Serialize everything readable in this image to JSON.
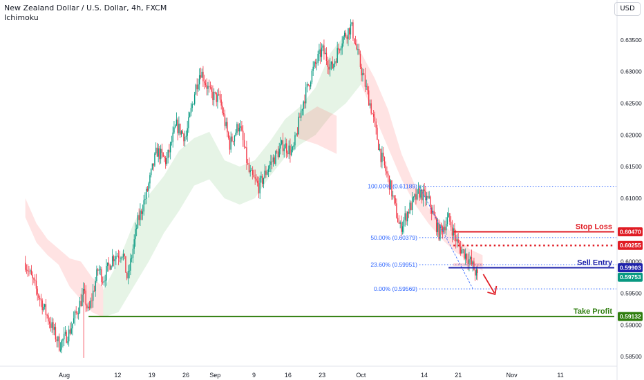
{
  "header": {
    "title": "New Zealand Dollar / U.S. Dollar, 4h, FXCM",
    "indicator": "Ichimoku",
    "currency_button": "USD"
  },
  "colors": {
    "up": "#089981",
    "down": "#f23645",
    "cloud_green": "#4caf50",
    "cloud_red": "#ff5252",
    "fib": "#2962ff",
    "stop": "#e01c24",
    "entry": "#1e22aa",
    "tp": "#2e7d0d"
  },
  "chart_data": {
    "type": "candlestick",
    "symbol": "New Zealand Dollar / U.S. Dollar",
    "timeframe": "4h",
    "y_axis": {
      "ticks": [
        "0.63500",
        "0.63000",
        "0.62500",
        "0.62000",
        "0.61500",
        "0.61000",
        "0.60500",
        "0.60000",
        "0.59500",
        "0.59000",
        "0.58500"
      ],
      "ylim": [
        0.5837,
        0.6388
      ]
    },
    "x_axis": {
      "ticks": [
        "Aug",
        "12",
        "19",
        "26",
        "Sep",
        "9",
        "16",
        "23",
        "Oct",
        "14",
        "21",
        "Nov",
        "11"
      ]
    },
    "price_path": [
      [
        "Jul 24",
        0.5998
      ],
      [
        "Jul 26",
        0.596
      ],
      [
        "Jul 29",
        0.5905
      ],
      [
        "Jul 31",
        0.5868
      ],
      [
        "Aug 2",
        0.5888
      ],
      [
        "Aug 5",
        0.595
      ],
      [
        "Aug 6",
        0.5918
      ],
      [
        "Aug 8",
        0.599
      ],
      [
        "Aug 9",
        0.5972
      ],
      [
        "Aug 11",
        0.6008
      ],
      [
        "Aug 13",
        0.6015
      ],
      [
        "Aug 14",
        0.597
      ],
      [
        "Aug 16",
        0.606
      ],
      [
        "Aug 18",
        0.611
      ],
      [
        "Aug 20",
        0.6175
      ],
      [
        "Aug 22",
        0.6158
      ],
      [
        "Aug 24",
        0.6215
      ],
      [
        "Aug 26",
        0.6196
      ],
      [
        "Aug 28",
        0.6275
      ],
      [
        "Aug 29",
        0.6302
      ],
      [
        "Aug 31",
        0.6265
      ],
      [
        "Sep 2",
        0.6255
      ],
      [
        "Sep 4",
        0.6185
      ],
      [
        "Sep 6",
        0.6218
      ],
      [
        "Sep 8",
        0.614
      ],
      [
        "Sep 10",
        0.6118
      ],
      [
        "Sep 12",
        0.615
      ],
      [
        "Sep 15",
        0.6185
      ],
      [
        "Sep 17",
        0.6172
      ],
      [
        "Sep 19",
        0.625
      ],
      [
        "Sep 21",
        0.63
      ],
      [
        "Sep 23",
        0.6335
      ],
      [
        "Sep 25",
        0.6305
      ],
      [
        "Sep 27",
        0.635
      ],
      [
        "Sep 29",
        0.6372
      ],
      [
        "Oct 1",
        0.6305
      ],
      [
        "Oct 3",
        0.6245
      ],
      [
        "Oct 5",
        0.617
      ],
      [
        "Oct 7",
        0.612
      ],
      [
        "Oct 9",
        0.6052
      ],
      [
        "Oct 11",
        0.6085
      ],
      [
        "Oct 13",
        0.611
      ],
      [
        "Oct 15",
        0.6095
      ],
      [
        "Oct 17",
        0.6045
      ],
      [
        "Oct 19",
        0.6068
      ],
      [
        "Oct 21",
        0.6025
      ],
      [
        "Oct 23",
        0.6006
      ],
      [
        "Oct 24",
        0.5992
      ],
      [
        "Oct 25",
        0.5975
      ]
    ],
    "ichimoku_cloud": [
      {
        "color": "red",
        "from": "Jul 24",
        "to": "Aug 9",
        "top": [
          0.61,
          0.606,
          0.6035,
          0.602,
          0.6005,
          0.6,
          0.5975,
          0.596
        ],
        "bottom": [
          0.607,
          0.603,
          0.601,
          0.5995,
          0.596,
          0.594,
          0.592,
          0.5912
        ]
      },
      {
        "color": "green",
        "from": "Aug 9",
        "to": "Oct 1",
        "top": [
          0.5955,
          0.6,
          0.606,
          0.6105,
          0.6135,
          0.6175,
          0.6195,
          0.6205,
          0.616,
          0.615,
          0.616,
          0.619,
          0.6225,
          0.6245,
          0.6275,
          0.633,
          0.636,
          0.633
        ],
        "bottom": [
          0.5912,
          0.592,
          0.596,
          0.6,
          0.6045,
          0.608,
          0.612,
          0.613,
          0.61,
          0.609,
          0.61,
          0.6135,
          0.6165,
          0.6185,
          0.62,
          0.623,
          0.625,
          0.628
        ]
      },
      {
        "color": "red",
        "from": "Sep 18",
        "to": "Sep 26",
        "top": [
          0.6225,
          0.6245,
          0.623
        ],
        "bottom": [
          0.6195,
          0.6185,
          0.617
        ]
      },
      {
        "color": "red",
        "from": "Oct 1",
        "to": "Oct 26",
        "top": [
          0.633,
          0.629,
          0.624,
          0.617,
          0.612,
          0.6085,
          0.606,
          0.604,
          0.602,
          0.601
        ],
        "bottom": [
          0.628,
          0.623,
          0.618,
          0.613,
          0.609,
          0.606,
          0.6035,
          0.6015,
          0.6,
          0.5985
        ]
      }
    ],
    "fibonacci": [
      {
        "label": "100.00% (0.61189)",
        "price": 0.61189
      },
      {
        "label": "50.00% (0.60379)",
        "price": 0.60379
      },
      {
        "label": "23.60% (0.59951)",
        "price": 0.59951
      },
      {
        "label": "0.00% (0.59569)",
        "price": 0.59569
      }
    ],
    "levels": [
      {
        "name": "Stop Loss",
        "price": 0.6047,
        "label": "0.60470"
      },
      {
        "name": "",
        "price": 0.60255,
        "label": "0.60255"
      },
      {
        "name": "Sell Entry",
        "price": 0.59903,
        "label": "0.59903"
      },
      {
        "name": "",
        "price": 0.59753,
        "label": "0.59753"
      },
      {
        "name": "Take Profit",
        "price": 0.59132,
        "label": "0.59132"
      }
    ]
  }
}
